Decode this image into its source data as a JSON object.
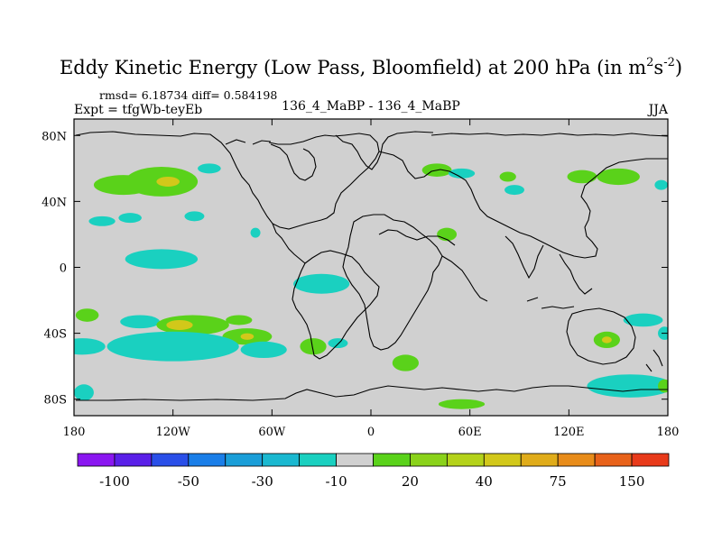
{
  "chart_data": {
    "type": "heatmap",
    "title": "Eddy Kinetic Energy (Low Pass, Bloomfield) at 200 hPa (in m",
    "title_units": {
      "sup1": "2",
      "mid": "s",
      "sup2": "-2",
      "close": ")"
    },
    "stats_text": "rmsd= 6.18734 diff= 0.584198",
    "expt_text": "Expt = tfgWb-teyEb",
    "center_text": "136_4_MaBP - 136_4_MaBP",
    "season": "JJA",
    "xlim": [
      -180,
      180
    ],
    "ylim": [
      -90,
      90
    ],
    "x_ticks": [
      {
        "value": -180,
        "label": "180"
      },
      {
        "value": -120,
        "label": "120W"
      },
      {
        "value": -60,
        "label": "60W"
      },
      {
        "value": 0,
        "label": "0"
      },
      {
        "value": 60,
        "label": "60E"
      },
      {
        "value": 120,
        "label": "120E"
      },
      {
        "value": 180,
        "label": "180"
      }
    ],
    "y_ticks": [
      {
        "value": 80,
        "label": "80N"
      },
      {
        "value": 40,
        "label": "40N"
      },
      {
        "value": 0,
        "label": "0"
      },
      {
        "value": -40,
        "label": "40S"
      },
      {
        "value": -80,
        "label": "80S"
      }
    ],
    "background_value": 0,
    "colorbar": {
      "colors": [
        "#8a16f0",
        "#5a1fe8",
        "#2a4fe8",
        "#1a7ee8",
        "#1a9ed8",
        "#1ab8d0",
        "#1ad0c0",
        "#d0d0d0",
        "#5ad21a",
        "#8ad21a",
        "#b4d21a",
        "#d2c81a",
        "#e0ac1a",
        "#e88c1a",
        "#e8621a",
        "#e83a1a"
      ],
      "labels": [
        {
          "boundary": 1,
          "text": "-100"
        },
        {
          "boundary": 3,
          "text": "-50"
        },
        {
          "boundary": 5,
          "text": "-30"
        },
        {
          "boundary": 7,
          "text": "-10"
        },
        {
          "boundary": 9,
          "text": "20"
        },
        {
          "boundary": 11,
          "text": "40"
        },
        {
          "boundary": 13,
          "text": "75"
        },
        {
          "boundary": 15,
          "text": "150"
        }
      ]
    },
    "anomalies": [
      {
        "lon": -150,
        "lat": 50,
        "rlon": 18,
        "rlat": 6,
        "level": "green"
      },
      {
        "lon": -127,
        "lat": 52,
        "rlon": 22,
        "rlat": 9,
        "level": "green"
      },
      {
        "lon": -123,
        "lat": 52,
        "rlon": 7,
        "rlat": 3,
        "level": "yellow"
      },
      {
        "lon": -98,
        "lat": 60,
        "rlon": 7,
        "rlat": 3,
        "level": "cyan"
      },
      {
        "lon": -163,
        "lat": 28,
        "rlon": 8,
        "rlat": 3,
        "level": "cyan"
      },
      {
        "lon": -146,
        "lat": 30,
        "rlon": 7,
        "rlat": 3,
        "level": "cyan"
      },
      {
        "lon": -107,
        "lat": 31,
        "rlon": 6,
        "rlat": 3,
        "level": "cyan"
      },
      {
        "lon": -70,
        "lat": 21,
        "rlon": 3,
        "rlat": 3,
        "level": "cyan"
      },
      {
        "lon": -127,
        "lat": 5,
        "rlon": 22,
        "rlat": 6,
        "level": "cyan"
      },
      {
        "lon": -172,
        "lat": -29,
        "rlon": 7,
        "rlat": 4,
        "level": "green"
      },
      {
        "lon": -140,
        "lat": -33,
        "rlon": 12,
        "rlat": 4,
        "level": "cyan"
      },
      {
        "lon": -108,
        "lat": -35,
        "rlon": 22,
        "rlat": 6,
        "level": "green"
      },
      {
        "lon": -116,
        "lat": -35,
        "rlon": 8,
        "rlat": 3,
        "level": "yellow"
      },
      {
        "lon": -80,
        "lat": -32,
        "rlon": 8,
        "rlat": 3,
        "level": "green"
      },
      {
        "lon": -75,
        "lat": -42,
        "rlon": 15,
        "rlat": 5,
        "level": "green"
      },
      {
        "lon": -75,
        "lat": -42,
        "rlon": 4,
        "rlat": 2,
        "level": "yellow"
      },
      {
        "lon": -120,
        "lat": -48,
        "rlon": 40,
        "rlat": 9,
        "level": "cyan"
      },
      {
        "lon": -175,
        "lat": -48,
        "rlon": 14,
        "rlat": 5,
        "level": "cyan"
      },
      {
        "lon": -65,
        "lat": -50,
        "rlon": 14,
        "rlat": 5,
        "level": "cyan"
      },
      {
        "lon": -35,
        "lat": -48,
        "rlon": 8,
        "rlat": 5,
        "level": "green"
      },
      {
        "lon": -20,
        "lat": -46,
        "rlon": 6,
        "rlat": 3,
        "level": "cyan"
      },
      {
        "lon": -174,
        "lat": -76,
        "rlon": 6,
        "rlat": 5,
        "level": "cyan"
      },
      {
        "lon": -30,
        "lat": -10,
        "rlon": 17,
        "rlat": 6,
        "level": "cyan"
      },
      {
        "lon": 21,
        "lat": -58,
        "rlon": 8,
        "rlat": 5,
        "level": "green"
      },
      {
        "lon": 46,
        "lat": 20,
        "rlon": 6,
        "rlat": 4,
        "level": "green"
      },
      {
        "lon": 40,
        "lat": 59,
        "rlon": 9,
        "rlat": 4,
        "level": "green"
      },
      {
        "lon": 55,
        "lat": 57,
        "rlon": 8,
        "rlat": 3,
        "level": "cyan"
      },
      {
        "lon": 83,
        "lat": 55,
        "rlon": 5,
        "rlat": 3,
        "level": "green"
      },
      {
        "lon": 87,
        "lat": 47,
        "rlon": 6,
        "rlat": 3,
        "level": "cyan"
      },
      {
        "lon": 128,
        "lat": 55,
        "rlon": 9,
        "rlat": 4,
        "level": "green"
      },
      {
        "lon": 150,
        "lat": 55,
        "rlon": 13,
        "rlat": 5,
        "level": "green"
      },
      {
        "lon": 176,
        "lat": 50,
        "rlon": 4,
        "rlat": 3,
        "level": "cyan"
      },
      {
        "lon": 165,
        "lat": -32,
        "rlon": 12,
        "rlat": 4,
        "level": "cyan"
      },
      {
        "lon": 143,
        "lat": -44,
        "rlon": 8,
        "rlat": 5,
        "level": "green"
      },
      {
        "lon": 143,
        "lat": -44,
        "rlon": 3,
        "rlat": 2,
        "level": "yellow"
      },
      {
        "lon": 178,
        "lat": -40,
        "rlon": 4,
        "rlat": 4,
        "level": "cyan"
      },
      {
        "lon": 157,
        "lat": -72,
        "rlon": 26,
        "rlat": 7,
        "level": "cyan"
      },
      {
        "lon": 178,
        "lat": -72,
        "rlon": 4,
        "rlat": 4,
        "level": "green"
      },
      {
        "lon": 55,
        "lat": -83,
        "rlon": 14,
        "rlat": 3,
        "level": "green"
      }
    ]
  }
}
